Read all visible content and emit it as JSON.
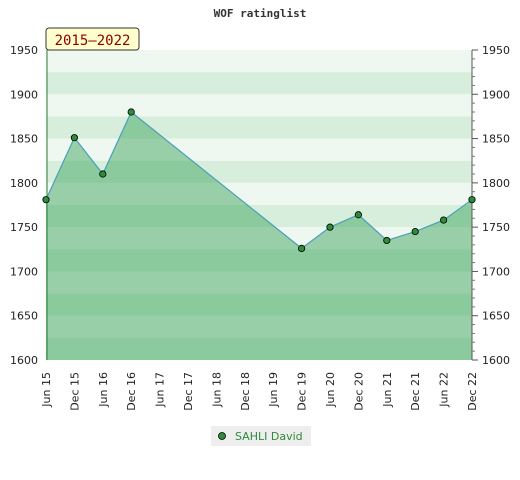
{
  "chart_data": {
    "type": "area",
    "title": "WOF ratinglist",
    "range_badge": "2015—2022",
    "x": [
      "Jun 15",
      "Dec 15",
      "Jun 16",
      "Dec 16",
      "Jun 17",
      "Dec 17",
      "Jun 18",
      "Dec 18",
      "Jun 19",
      "Dec 19",
      "Jun 20",
      "Dec 20",
      "Jun 21",
      "Dec 21",
      "Jun 22",
      "Dec 22"
    ],
    "ylim": [
      1600,
      1950
    ],
    "yticks": [
      1600,
      1650,
      1700,
      1750,
      1800,
      1850,
      1900,
      1950
    ],
    "grid": true,
    "legend_position": "bottom",
    "series": [
      {
        "name": "SAHLI David",
        "color": "#4a9fb8",
        "marker_color": "#2e8b3a",
        "points": [
          {
            "x": "Jun 15",
            "y": 1781
          },
          {
            "x": "Dec 15",
            "y": 1851
          },
          {
            "x": "Jun 16",
            "y": 1810
          },
          {
            "x": "Dec 16",
            "y": 1880
          },
          {
            "x": "Dec 19",
            "y": 1726
          },
          {
            "x": "Jun 20",
            "y": 1750
          },
          {
            "x": "Dec 20",
            "y": 1764
          },
          {
            "x": "Jun 21",
            "y": 1735
          },
          {
            "x": "Dec 21",
            "y": 1745
          },
          {
            "x": "Jun 22",
            "y": 1758
          },
          {
            "x": "Dec 22",
            "y": 1781
          }
        ]
      }
    ],
    "colors": {
      "band_light": "#ffffff",
      "band_dark": "#d8eedd",
      "area_fill": "#2f9e4f"
    }
  }
}
